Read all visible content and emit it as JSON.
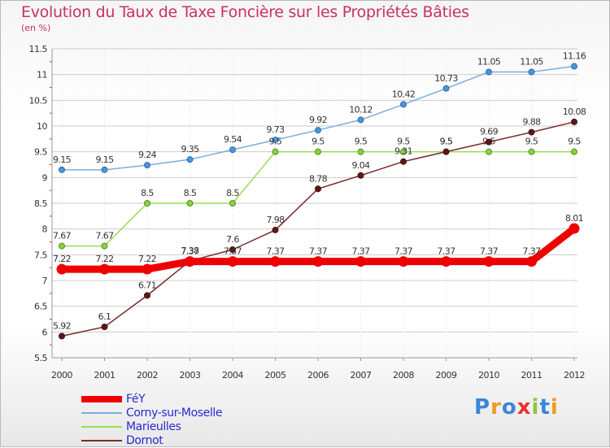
{
  "chart_data": {
    "type": "line",
    "title": "Evolution du Taux de Taxe Foncière sur les Propriétés Bâties",
    "ylabel": "(en %)",
    "xlabel": "",
    "ylim": [
      5.5,
      11.5
    ],
    "yticks": [
      "5.5",
      "6",
      "6.5",
      "7",
      "7.5",
      "8",
      "8.5",
      "9",
      "9.5",
      "10",
      "10.5",
      "11",
      "11.5"
    ],
    "categories": [
      "2000",
      "2001",
      "2002",
      "2003",
      "2004",
      "2005",
      "2006",
      "2007",
      "2008",
      "2009",
      "2010",
      "2011",
      "2012"
    ],
    "series": [
      {
        "name": "FéY",
        "color": "#ee0000",
        "values": [
          7.22,
          7.22,
          7.22,
          7.37,
          7.37,
          7.37,
          7.37,
          7.37,
          7.37,
          7.37,
          7.37,
          7.37,
          8.01
        ],
        "labels": [
          "7.22",
          "7.22",
          "7.22",
          "7.37",
          "7.37",
          "7.37",
          "7.37",
          "7.37",
          "7.37",
          "7.37",
          "7.37",
          "7.37",
          "8.01"
        ]
      },
      {
        "name": "Corny-sur-Moselle",
        "color": "#7aaee0",
        "values": [
          9.15,
          9.15,
          9.24,
          9.35,
          9.54,
          9.73,
          9.92,
          10.12,
          10.42,
          10.73,
          11.05,
          11.05,
          11.16
        ],
        "labels": [
          "9.15",
          "9.15",
          "9.24",
          "9.35",
          "9.54",
          "9.73",
          "9.92",
          "10.12",
          "10.42",
          "10.73",
          "11.05",
          "11.05",
          "11.16"
        ]
      },
      {
        "name": "Marieulles",
        "color": "#99dd55",
        "values": [
          7.67,
          7.67,
          8.5,
          8.5,
          8.5,
          9.5,
          9.5,
          9.5,
          9.5,
          9.5,
          9.5,
          9.5,
          9.5
        ],
        "labels": [
          "7.67",
          "7.67",
          "8.5",
          "8.5",
          "8.5",
          "9.5",
          "9.5",
          "9.5",
          "9.5",
          "9.5",
          "9.5",
          "9.5",
          "9.5"
        ]
      },
      {
        "name": "Dornot",
        "color": "#7a2a2a",
        "values": [
          5.92,
          6.1,
          6.71,
          7.38,
          7.6,
          7.98,
          8.78,
          9.04,
          9.31,
          9.5,
          9.69,
          9.88,
          10.08
        ],
        "labels": [
          "5.92",
          "6.1",
          "6.71",
          "7.38",
          "7.6",
          "7.98",
          "8.78",
          "9.04",
          "9.31",
          "9.5",
          "9.69",
          "9.88",
          "10.08"
        ]
      }
    ],
    "legend": "bottom-left"
  },
  "logo": {
    "text": "Proxiti",
    "letters": [
      "P",
      "r",
      "o",
      "x",
      "i",
      "t",
      "i"
    ],
    "colors": [
      "#3a86d6",
      "#f39a1c",
      "#3a86d6",
      "#e9322e",
      "#8cc63e",
      "#3a86d6",
      "#f39a1c"
    ]
  },
  "colors": {
    "title": "#c8325e",
    "grid": "#cccccc",
    "axis_text": "#333333",
    "legend_text": "#2a2ad0"
  }
}
